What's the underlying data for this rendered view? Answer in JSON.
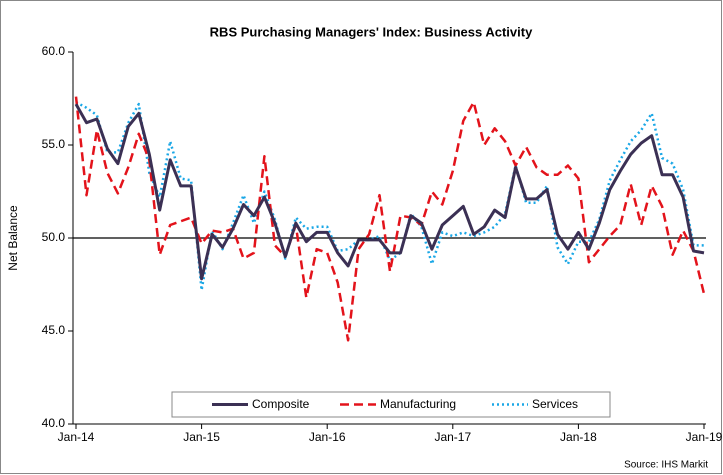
{
  "chart_data": {
    "type": "line",
    "title": "RBS Purchasing Managers' Index: Business Activity",
    "y_label": "Net Balance",
    "source": "Source: IHS Markit",
    "categories": [
      "Jan-14",
      null,
      null,
      null,
      null,
      null,
      null,
      null,
      null,
      null,
      null,
      null,
      "Jan-15",
      null,
      null,
      null,
      null,
      null,
      null,
      null,
      null,
      null,
      null,
      null,
      "Jan-16",
      null,
      null,
      null,
      null,
      null,
      null,
      null,
      null,
      null,
      null,
      null,
      "Jan-17",
      null,
      null,
      null,
      null,
      null,
      null,
      null,
      null,
      null,
      null,
      null,
      "Jan-18",
      null,
      null,
      null,
      null,
      null,
      null,
      null,
      null,
      null,
      null,
      null,
      "Jan-19"
    ],
    "series": [
      {
        "name": "Composite",
        "color": "#3b3054",
        "style": "solid",
        "values": [
          57.2,
          56.2,
          56.4,
          54.8,
          54.0,
          56.0,
          56.7,
          54.5,
          51.5,
          54.2,
          52.8,
          52.8,
          47.8,
          50.2,
          49.5,
          50.5,
          51.8,
          51.2,
          52.2,
          50.8,
          49.0,
          50.8,
          49.8,
          50.3,
          50.3,
          49.2,
          48.5,
          49.9,
          49.9,
          49.9,
          49.2,
          49.2,
          51.2,
          50.8,
          49.4,
          50.7,
          51.2,
          51.7,
          50.2,
          50.6,
          51.5,
          51.1,
          53.8,
          52.1,
          52.1,
          52.6,
          50.2,
          49.4,
          50.3,
          49.4,
          50.8,
          52.6,
          53.6,
          54.5,
          55.1,
          55.5,
          53.4,
          53.4,
          52.2,
          49.3,
          49.2
        ]
      },
      {
        "name": "Manufacturing",
        "color": "#e3131b",
        "style": "dashed",
        "values": [
          57.6,
          52.3,
          55.8,
          53.5,
          52.4,
          53.8,
          55.6,
          54.2,
          49.1,
          50.7,
          50.9,
          51.1,
          49.7,
          50.4,
          50.3,
          50.5,
          48.9,
          49.2,
          54.4,
          49.6,
          49.0,
          50.7,
          46.8,
          49.4,
          49.2,
          47.6,
          44.5,
          49.4,
          50.2,
          52.3,
          48.2,
          51.2,
          51.1,
          50.7,
          52.5,
          51.8,
          53.6,
          56.3,
          57.3,
          55.0,
          55.9,
          55.2,
          53.9,
          54.9,
          53.8,
          53.4,
          53.4,
          53.9,
          53.2,
          48.7,
          49.4,
          50.1,
          50.7,
          52.9,
          50.7,
          52.8,
          51.7,
          49.1,
          50.4,
          49.3,
          47.0
        ]
      },
      {
        "name": "Services",
        "color": "#1aa7e6",
        "style": "dotted",
        "values": [
          57.3,
          57.0,
          56.6,
          54.6,
          54.6,
          56.2,
          57.2,
          53.5,
          52.2,
          55.2,
          53.2,
          53.1,
          47.2,
          50.4,
          49.4,
          50.8,
          52.3,
          50.8,
          52.5,
          51.0,
          48.9,
          51.1,
          50.5,
          50.6,
          50.6,
          49.3,
          49.4,
          49.9,
          49.9,
          50.1,
          48.8,
          49.2,
          51.3,
          50.6,
          48.6,
          50.3,
          50.1,
          50.3,
          50.1,
          50.3,
          50.6,
          51.3,
          53.9,
          51.9,
          51.9,
          52.8,
          49.5,
          48.6,
          49.8,
          49.8,
          51.0,
          53.1,
          54.2,
          55.2,
          55.8,
          56.7,
          54.3,
          54.0,
          52.6,
          49.6,
          49.6
        ]
      }
    ],
    "ylim": [
      40,
      60
    ],
    "yticks": [
      {
        "value": 40,
        "label": "40.0"
      },
      {
        "value": 45,
        "label": "45.0"
      },
      {
        "value": 50,
        "label": "50.0"
      },
      {
        "value": 55,
        "label": "55.0"
      },
      {
        "value": 60,
        "label": "60.0"
      }
    ],
    "reference_line": 50,
    "legend": "bottom"
  }
}
